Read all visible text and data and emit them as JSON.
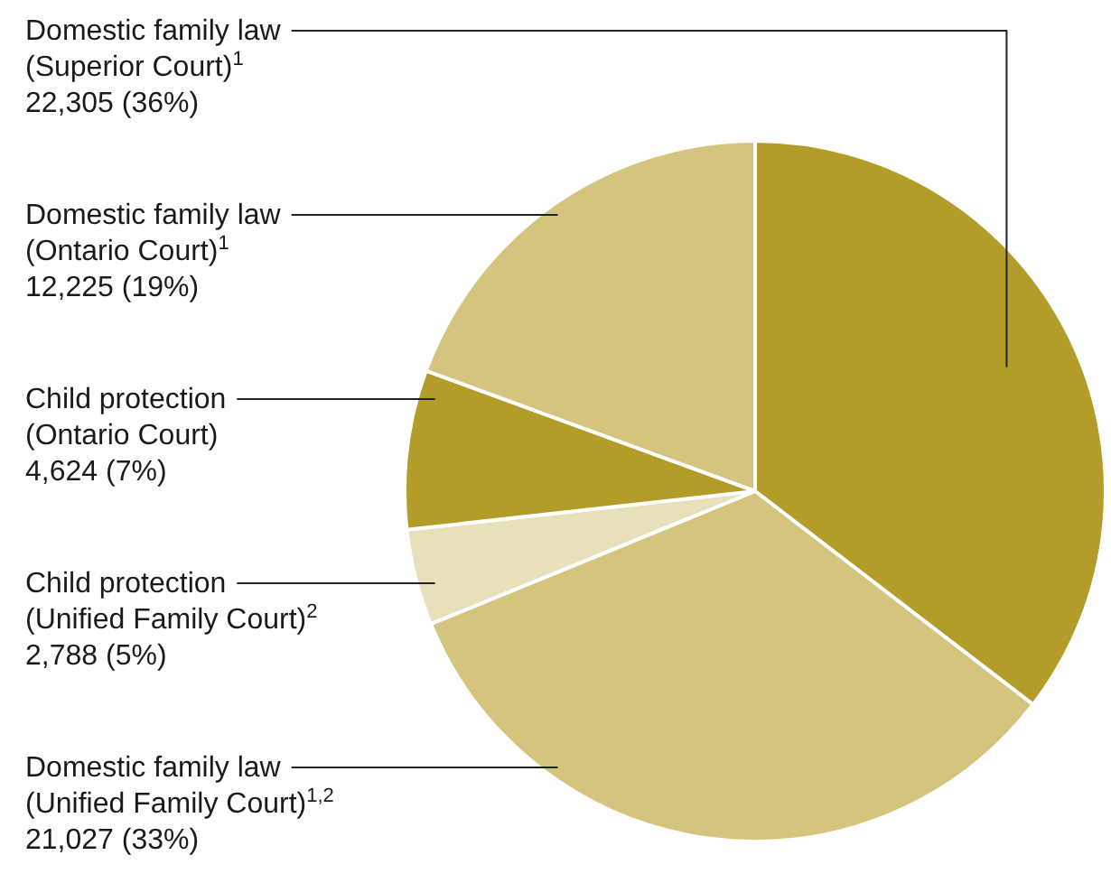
{
  "chart_data": {
    "type": "pie",
    "categories": [
      "Domestic family law\n(Superior Court)$^{1}$",
      "Domestic family law\n(Unified Family Court)$^{1,2}$",
      "Child protection\n(Unified Family Court)$^{2}$",
      "Child protection\n(Ontario Court)",
      "Domestic family law\n(Ontario Court)$^{1}$"
    ],
    "values": [
      22305,
      21027,
      2788,
      4624,
      12225
    ],
    "value_labels": [
      "22,305 (36%)",
      "21,027 (33%)",
      "2,788 (5%)",
      "4,624 (7%)",
      "12,225 (19%)"
    ],
    "colors": [
      "#b39c2a",
      "#d4c47e",
      "#e8e0bb",
      "#b39c2a",
      "#d4c47e"
    ]
  }
}
